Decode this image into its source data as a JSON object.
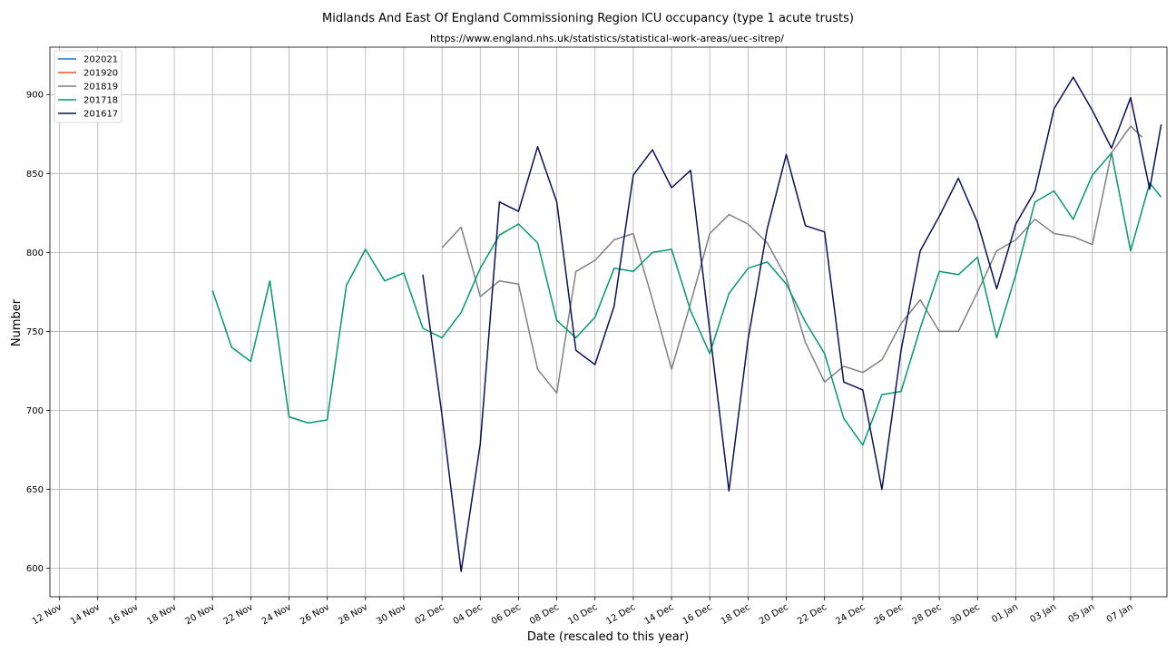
{
  "chart_data": {
    "type": "line",
    "title": "Midlands And East Of England Commissioning Region ICU occupancy (type 1 acute trusts)",
    "subtitle": "https://www.england.nhs.uk/statistics/statistical-work-areas/uec-sitrep/",
    "xlabel": "Date (rescaled to this year)",
    "ylabel": "Number",
    "x_ticks": [
      "12 Nov",
      "14 Nov",
      "16 Nov",
      "18 Nov",
      "20 Nov",
      "22 Nov",
      "24 Nov",
      "26 Nov",
      "28 Nov",
      "30 Nov",
      "02 Dec",
      "04 Dec",
      "06 Dec",
      "08 Dec",
      "10 Dec",
      "12 Dec",
      "14 Dec",
      "16 Dec",
      "18 Dec",
      "20 Dec",
      "22 Dec",
      "24 Dec",
      "26 Dec",
      "28 Dec",
      "30 Dec",
      "01 Jan",
      "03 Jan",
      "05 Jan",
      "07 Jan"
    ],
    "y_ticks": [
      600,
      650,
      700,
      750,
      800,
      850,
      900
    ],
    "xlim_days": [
      -0.5,
      57.9
    ],
    "ylim": [
      582,
      930
    ],
    "x_unit": "days since 12 Nov",
    "grid": true,
    "legend_position": "top-left",
    "series": [
      {
        "name": "202021",
        "color": "#1f77d4",
        "points": []
      },
      {
        "name": "201920",
        "color": "#e4572e",
        "points": []
      },
      {
        "name": "201819",
        "color": "#808080",
        "points": [
          [
            20,
            803
          ],
          [
            21,
            816
          ],
          [
            22,
            772
          ],
          [
            23,
            782
          ],
          [
            24,
            780
          ],
          [
            25,
            726
          ],
          [
            26,
            711
          ],
          [
            27,
            788
          ],
          [
            28,
            795
          ],
          [
            29,
            808
          ],
          [
            30,
            812
          ],
          [
            31,
            770
          ],
          [
            32,
            726
          ],
          [
            33,
            768
          ],
          [
            34,
            812
          ],
          [
            35,
            824
          ],
          [
            36,
            818
          ],
          [
            37,
            806
          ],
          [
            38,
            784
          ],
          [
            39,
            743
          ],
          [
            40,
            718
          ],
          [
            41,
            728
          ],
          [
            42,
            724
          ],
          [
            43,
            732
          ],
          [
            44,
            755
          ],
          [
            45,
            770
          ],
          [
            46,
            750
          ],
          [
            47,
            750
          ],
          [
            48,
            775
          ],
          [
            49,
            801
          ],
          [
            50,
            808
          ],
          [
            51,
            821
          ],
          [
            52,
            812
          ],
          [
            53,
            810
          ],
          [
            54,
            805
          ],
          [
            55,
            863
          ],
          [
            56,
            880
          ],
          [
            56.6,
            873
          ]
        ]
      },
      {
        "name": "201718",
        "color": "#009a6e",
        "points": [
          [
            8,
            776
          ],
          [
            9,
            740
          ],
          [
            10,
            731
          ],
          [
            11,
            782
          ],
          [
            12,
            696
          ],
          [
            13,
            692
          ],
          [
            14,
            694
          ],
          [
            15,
            779
          ],
          [
            16,
            802
          ],
          [
            17,
            782
          ],
          [
            18,
            787
          ],
          [
            19,
            752
          ],
          [
            20,
            746
          ],
          [
            21,
            762
          ],
          [
            22,
            790
          ],
          [
            23,
            811
          ],
          [
            24,
            818
          ],
          [
            25,
            806
          ],
          [
            26,
            757
          ],
          [
            27,
            746
          ],
          [
            28,
            759
          ],
          [
            29,
            790
          ],
          [
            30,
            788
          ],
          [
            31,
            800
          ],
          [
            32,
            802
          ],
          [
            33,
            763
          ],
          [
            34,
            736
          ],
          [
            35,
            774
          ],
          [
            36,
            790
          ],
          [
            37,
            794
          ],
          [
            38,
            780
          ],
          [
            39,
            756
          ],
          [
            40,
            736
          ],
          [
            41,
            695
          ],
          [
            42,
            678
          ],
          [
            43,
            710
          ],
          [
            44,
            712
          ],
          [
            45,
            752
          ],
          [
            46,
            788
          ],
          [
            47,
            786
          ],
          [
            48,
            797
          ],
          [
            49,
            746
          ],
          [
            50,
            786
          ],
          [
            51,
            832
          ],
          [
            52,
            839
          ],
          [
            53,
            821
          ],
          [
            54,
            849
          ],
          [
            55,
            863
          ],
          [
            56,
            801
          ],
          [
            57,
            844
          ],
          [
            57.6,
            835
          ]
        ]
      },
      {
        "name": "201617",
        "color": "#0a1158",
        "points": [
          [
            19,
            786
          ],
          [
            20,
            697
          ],
          [
            21,
            598
          ],
          [
            22,
            679
          ],
          [
            23,
            832
          ],
          [
            24,
            826
          ],
          [
            25,
            867
          ],
          [
            26,
            832
          ],
          [
            27,
            738
          ],
          [
            28,
            729
          ],
          [
            29,
            766
          ],
          [
            30,
            849
          ],
          [
            31,
            865
          ],
          [
            32,
            841
          ],
          [
            33,
            852
          ],
          [
            34,
            750
          ],
          [
            35,
            649
          ],
          [
            36,
            745
          ],
          [
            37,
            815
          ],
          [
            38,
            862
          ],
          [
            39,
            817
          ],
          [
            40,
            813
          ],
          [
            41,
            718
          ],
          [
            42,
            713
          ],
          [
            43,
            650
          ],
          [
            44,
            738
          ],
          [
            45,
            801
          ],
          [
            46,
            823
          ],
          [
            47,
            847
          ],
          [
            48,
            819
          ],
          [
            49,
            777
          ],
          [
            50,
            818
          ],
          [
            51,
            839
          ],
          [
            52,
            891
          ],
          [
            53,
            911
          ],
          [
            54,
            890
          ],
          [
            55,
            866
          ],
          [
            56,
            898
          ],
          [
            57,
            840
          ],
          [
            57.6,
            881
          ]
        ]
      }
    ]
  }
}
